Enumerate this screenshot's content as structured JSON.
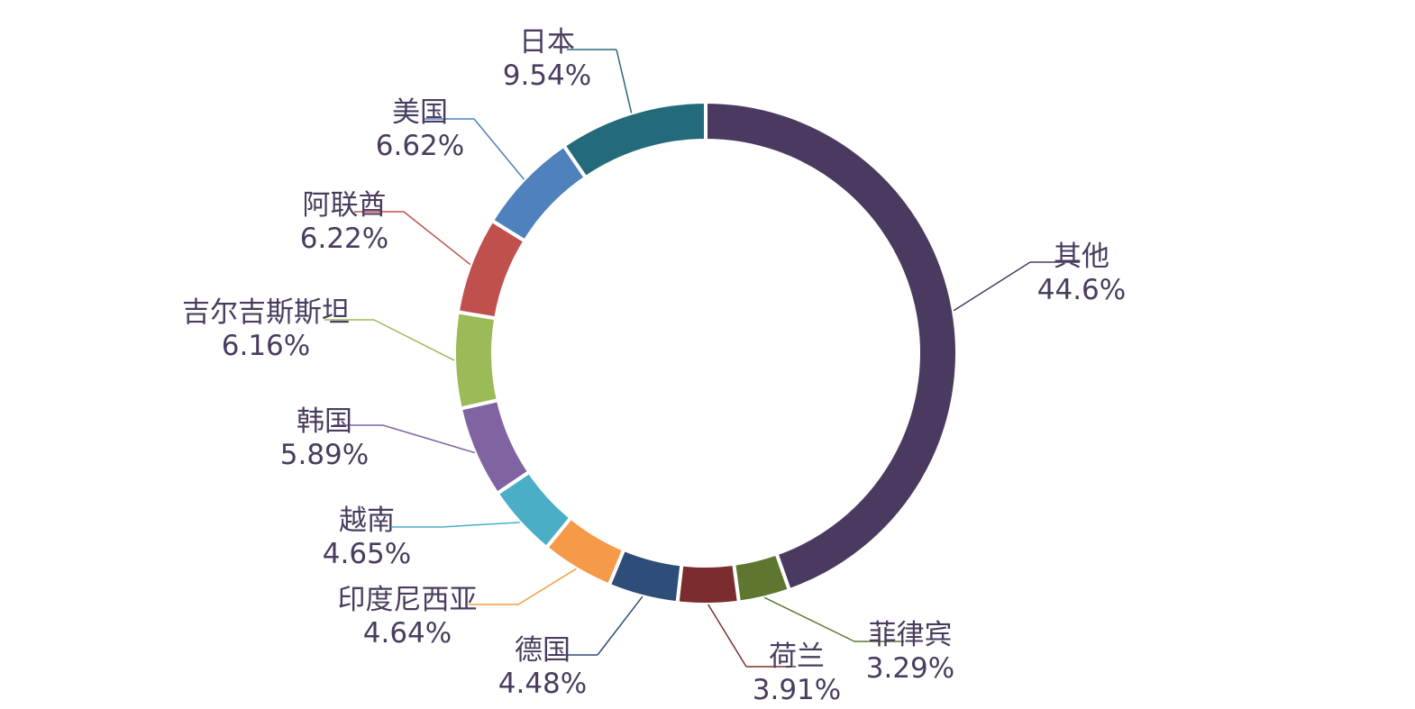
{
  "chart_data": {
    "type": "pie",
    "donut": true,
    "start_angle_deg": 0,
    "direction": "clockwise",
    "legend": "none",
    "slices": [
      {
        "label": "其他",
        "value": 44.6,
        "value_label": "44.6%",
        "color": "#4b3a5f"
      },
      {
        "label": "菲律宾",
        "value": 3.29,
        "value_label": "3.29%",
        "color": "#5e7630"
      },
      {
        "label": "荷兰",
        "value": 3.91,
        "value_label": "3.91%",
        "color": "#7b2d2d"
      },
      {
        "label": "德国",
        "value": 4.48,
        "value_label": "4.48%",
        "color": "#2e4d78"
      },
      {
        "label": "印度尼西亚",
        "value": 4.64,
        "value_label": "4.64%",
        "color": "#f59a48"
      },
      {
        "label": "越南",
        "value": 4.65,
        "value_label": "4.65%",
        "color": "#4aafc6"
      },
      {
        "label": "韩国",
        "value": 5.89,
        "value_label": "5.89%",
        "color": "#8064a2"
      },
      {
        "label": "吉尔吉斯斯坦",
        "value": 6.16,
        "value_label": "6.16%",
        "color": "#9bbb59"
      },
      {
        "label": "阿联酋",
        "value": 6.22,
        "value_label": "6.22%",
        "color": "#c0504d"
      },
      {
        "label": "美国",
        "value": 6.62,
        "value_label": "6.62%",
        "color": "#4f81bd"
      },
      {
        "label": "日本",
        "value": 9.54,
        "value_label": "9.54%",
        "color": "#236a7a"
      }
    ]
  }
}
